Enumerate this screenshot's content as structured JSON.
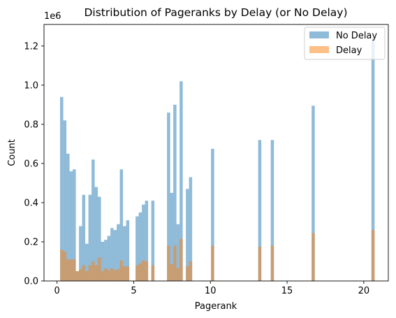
{
  "chart_data": {
    "type": "bar",
    "title": "Distribution of Pageranks by Delay (or No Delay)",
    "xlabel": "Pagerank",
    "ylabel": "Count",
    "y_offset_text": "1e6",
    "xlim": [
      -0.85,
      21.6
    ],
    "ylim": [
      0,
      1.31
    ],
    "x_ticks": [
      0,
      5,
      10,
      15,
      20
    ],
    "y_ticks": [
      0.0,
      0.2,
      0.4,
      0.6,
      0.8,
      1.0,
      1.2
    ],
    "y_tick_labels": [
      "0.0",
      "0.2",
      "0.4",
      "0.6",
      "0.8",
      "1.0",
      "1.2"
    ],
    "bin_width": 0.205,
    "legend_position": "top-right",
    "grid": false,
    "series": [
      {
        "name": "No Delay",
        "color": "#1f77b4",
        "opacity": 0.5,
        "bins": [
          {
            "x": 0.2,
            "value": 0.94
          },
          {
            "x": 0.405,
            "value": 0.82
          },
          {
            "x": 0.61,
            "value": 0.65
          },
          {
            "x": 0.815,
            "value": 0.56
          },
          {
            "x": 1.02,
            "value": 0.57
          },
          {
            "x": 1.225,
            "value": 0.05
          },
          {
            "x": 1.43,
            "value": 0.28
          },
          {
            "x": 1.635,
            "value": 0.44
          },
          {
            "x": 1.84,
            "value": 0.19
          },
          {
            "x": 2.045,
            "value": 0.44
          },
          {
            "x": 2.25,
            "value": 0.62
          },
          {
            "x": 2.455,
            "value": 0.48
          },
          {
            "x": 2.66,
            "value": 0.43
          },
          {
            "x": 2.865,
            "value": 0.2
          },
          {
            "x": 3.07,
            "value": 0.21
          },
          {
            "x": 3.275,
            "value": 0.23
          },
          {
            "x": 3.48,
            "value": 0.27
          },
          {
            "x": 3.685,
            "value": 0.26
          },
          {
            "x": 3.89,
            "value": 0.29
          },
          {
            "x": 4.095,
            "value": 0.57
          },
          {
            "x": 4.3,
            "value": 0.28
          },
          {
            "x": 4.505,
            "value": 0.31
          },
          {
            "x": 5.12,
            "value": 0.33
          },
          {
            "x": 5.325,
            "value": 0.35
          },
          {
            "x": 5.53,
            "value": 0.39
          },
          {
            "x": 5.735,
            "value": 0.41
          },
          {
            "x": 6.145,
            "value": 0.41
          },
          {
            "x": 7.17,
            "value": 0.86
          },
          {
            "x": 7.375,
            "value": 0.45
          },
          {
            "x": 7.58,
            "value": 0.9
          },
          {
            "x": 7.785,
            "value": 0.29
          },
          {
            "x": 7.99,
            "value": 1.02
          },
          {
            "x": 8.4,
            "value": 0.47
          },
          {
            "x": 8.605,
            "value": 0.53
          },
          {
            "x": 10.04,
            "value": 0.675
          },
          {
            "x": 13.115,
            "value": 0.72
          },
          {
            "x": 13.935,
            "value": 0.72
          },
          {
            "x": 16.6,
            "value": 0.895
          },
          {
            "x": 20.5,
            "value": 1.24
          }
        ]
      },
      {
        "name": "Delay",
        "color": "#ff7f0e",
        "opacity": 0.5,
        "bins": [
          {
            "x": 0.2,
            "value": 0.16
          },
          {
            "x": 0.405,
            "value": 0.15
          },
          {
            "x": 0.61,
            "value": 0.11
          },
          {
            "x": 0.815,
            "value": 0.11
          },
          {
            "x": 1.02,
            "value": 0.11
          },
          {
            "x": 1.225,
            "value": 0.05
          },
          {
            "x": 1.43,
            "value": 0.06
          },
          {
            "x": 1.635,
            "value": 0.08
          },
          {
            "x": 1.84,
            "value": 0.05
          },
          {
            "x": 2.045,
            "value": 0.08
          },
          {
            "x": 2.25,
            "value": 0.1
          },
          {
            "x": 2.455,
            "value": 0.08
          },
          {
            "x": 2.66,
            "value": 0.12
          },
          {
            "x": 2.865,
            "value": 0.05
          },
          {
            "x": 3.07,
            "value": 0.065
          },
          {
            "x": 3.275,
            "value": 0.055
          },
          {
            "x": 3.48,
            "value": 0.065
          },
          {
            "x": 3.685,
            "value": 0.055
          },
          {
            "x": 3.89,
            "value": 0.06
          },
          {
            "x": 4.095,
            "value": 0.105
          },
          {
            "x": 4.3,
            "value": 0.075
          },
          {
            "x": 4.505,
            "value": 0.075
          },
          {
            "x": 5.12,
            "value": 0.08
          },
          {
            "x": 5.325,
            "value": 0.09
          },
          {
            "x": 5.53,
            "value": 0.105
          },
          {
            "x": 5.735,
            "value": 0.1
          },
          {
            "x": 6.145,
            "value": 0.08
          },
          {
            "x": 7.17,
            "value": 0.18
          },
          {
            "x": 7.375,
            "value": 0.085
          },
          {
            "x": 7.58,
            "value": 0.18
          },
          {
            "x": 7.785,
            "value": 0.065
          },
          {
            "x": 7.99,
            "value": 0.215
          },
          {
            "x": 8.4,
            "value": 0.075
          },
          {
            "x": 8.605,
            "value": 0.1
          },
          {
            "x": 10.04,
            "value": 0.18
          },
          {
            "x": 13.115,
            "value": 0.175
          },
          {
            "x": 13.935,
            "value": 0.18
          },
          {
            "x": 16.6,
            "value": 0.245
          },
          {
            "x": 20.5,
            "value": 0.26
          }
        ]
      }
    ]
  }
}
